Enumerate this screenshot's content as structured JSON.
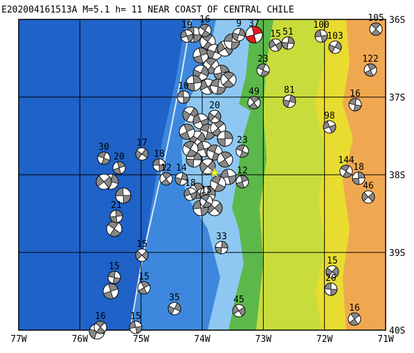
{
  "title": "E202004161513A  M=5.1  h=  11 NEAR COAST OF CENTRAL CHILE",
  "x_labels": [
    "77W",
    "76W",
    "75W",
    "74W",
    "73W",
    "72W",
    "71W"
  ],
  "y_labels": [
    "36S",
    "37S",
    "38S",
    "39S",
    "40S"
  ],
  "events": [
    {
      "label": 30
    },
    {
      "label": 20
    },
    {
      "label": 17
    },
    {
      "label": 18
    },
    {
      "label": 12
    },
    {
      "label": 14
    },
    {
      "label": 18
    },
    {
      "label": 15
    },
    {
      "label": 21
    },
    {
      "label": 15
    },
    {
      "label": 15
    },
    {
      "label": 15
    },
    {
      "label": 35
    },
    {
      "label": 15
    },
    {
      "label": 16
    },
    {
      "label": 33
    },
    {
      "label": 45
    },
    {
      "label": 23
    },
    {
      "label": 12
    },
    {
      "label": 20
    },
    {
      "label": 10
    },
    {
      "label": 49
    },
    {
      "label": 81
    },
    {
      "label": 98
    },
    {
      "label": 144
    },
    {
      "label": 18
    },
    {
      "label": 46
    },
    {
      "label": 16
    },
    {
      "label": 122
    },
    {
      "label": 103
    },
    {
      "label": 100
    },
    {
      "label": 105
    },
    {
      "label": 51
    },
    {
      "label": 15
    },
    {
      "label": 23
    },
    {
      "label": 37
    },
    {
      "label": 15
    },
    {
      "label": 20
    },
    {
      "label": 16
    },
    {
      "label": 9
    },
    {
      "label": 19
    },
    {
      "label": 16
    }
  ]
}
